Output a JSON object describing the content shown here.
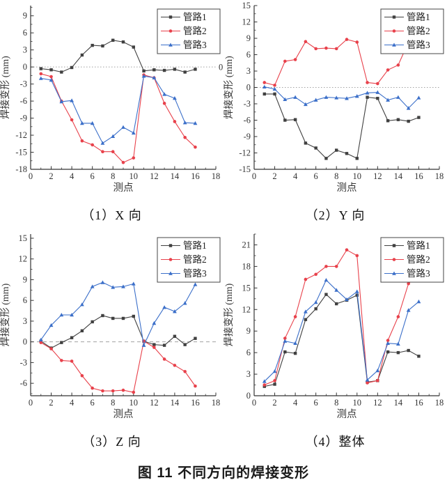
{
  "figure": {
    "caption": "图 11  不同方向的焊接变形"
  },
  "chart_data": [
    {
      "type": "line",
      "title": "（1）X 向",
      "xlabel": "测点",
      "ylabel": "焊接变形 (mm)",
      "x": [
        1,
        2,
        3,
        4,
        5,
        6,
        7,
        8,
        9,
        10,
        11,
        12,
        13,
        14,
        15,
        16
      ],
      "xlim": [
        0,
        18
      ],
      "xticks": [
        0,
        2,
        4,
        6,
        8,
        10,
        12,
        14,
        16,
        18
      ],
      "ylim": [
        -18,
        10.8
      ],
      "yticks": [
        -18,
        -15,
        -12,
        -9,
        -6,
        -3,
        0,
        3,
        6,
        9
      ],
      "zero_line": "dotted",
      "zero_line_label": "0",
      "legend_position": "top-right",
      "series": [
        {
          "name": "管路1",
          "marker": "square",
          "color": "#404040",
          "values": [
            -0.3,
            -0.5,
            -0.9,
            -0.1,
            2.1,
            3.8,
            3.7,
            4.7,
            4.4,
            3.5,
            -0.7,
            -0.5,
            -0.6,
            -0.4,
            -0.9,
            -0.4
          ]
        },
        {
          "name": "管路2",
          "marker": "circle",
          "color": "#e8414b",
          "values": [
            -1.2,
            -1.7,
            -6.0,
            -9.3,
            -13.0,
            -13.7,
            -14.9,
            -14.9,
            -16.8,
            -16.0,
            -1.4,
            -1.9,
            -6.4,
            -9.6,
            -12.4,
            -14.1
          ]
        },
        {
          "name": "管路3",
          "marker": "triangle",
          "color": "#3b6fc9",
          "values": [
            -2.0,
            -2.3,
            -6.1,
            -5.9,
            -9.9,
            -9.9,
            -13.4,
            -12.2,
            -10.6,
            -11.6,
            -1.6,
            -1.9,
            -4.8,
            -5.5,
            -9.8,
            -9.9
          ]
        }
      ]
    },
    {
      "type": "line",
      "title": "（2）Y 向",
      "xlabel": "测点",
      "ylabel": "焊接变形 (mm)",
      "x": [
        1,
        2,
        3,
        4,
        5,
        6,
        7,
        8,
        9,
        10,
        11,
        12,
        13,
        14,
        15,
        16
      ],
      "xlim": [
        0,
        18
      ],
      "xticks": [
        0,
        2,
        4,
        6,
        8,
        10,
        12,
        14,
        16,
        18
      ],
      "ylim": [
        -15,
        15
      ],
      "yticks": [
        -15,
        -12,
        -9,
        -6,
        -3,
        0,
        3,
        6,
        9,
        12,
        15
      ],
      "zero_line": "dotted",
      "zero_line_label": null,
      "legend_position": "top-right",
      "series": [
        {
          "name": "管路1",
          "marker": "square",
          "color": "#404040",
          "values": [
            -1.2,
            -1.2,
            -6.0,
            -5.9,
            -10.2,
            -11.1,
            -13.0,
            -11.5,
            -12.1,
            -13.0,
            -1.8,
            -2.0,
            -6.1,
            -5.9,
            -6.2,
            -5.5
          ]
        },
        {
          "name": "管路2",
          "marker": "circle",
          "color": "#e8414b",
          "values": [
            0.9,
            0.4,
            4.8,
            5.1,
            8.4,
            7.1,
            7.2,
            7.1,
            8.8,
            8.3,
            0.9,
            0.7,
            3.2,
            4.1,
            8.3,
            6.9
          ]
        },
        {
          "name": "管路3",
          "marker": "triangle",
          "color": "#3b6fc9",
          "values": [
            0.1,
            -0.3,
            -2.2,
            -1.8,
            -3.1,
            -2.3,
            -1.8,
            -1.9,
            -2.0,
            -1.6,
            -1.0,
            -0.9,
            -2.3,
            -1.8,
            -3.8,
            -1.9
          ]
        }
      ]
    },
    {
      "type": "line",
      "title": "（3）Z 向",
      "xlabel": "测点",
      "ylabel": "焊接变形 (mm)",
      "x": [
        1,
        2,
        3,
        4,
        5,
        6,
        7,
        8,
        9,
        10,
        11,
        12,
        13,
        14,
        15,
        16
      ],
      "xlim": [
        0,
        18
      ],
      "xticks": [
        0,
        2,
        4,
        6,
        8,
        10,
        12,
        14,
        16,
        18
      ],
      "ylim": [
        -7.8,
        15.6
      ],
      "yticks": [
        -6,
        -3,
        0,
        3,
        6,
        9,
        12,
        15
      ],
      "zero_line": "dashed",
      "zero_line_label": null,
      "legend_position": "top-right",
      "series": [
        {
          "name": "管路1",
          "marker": "square",
          "color": "#404040",
          "values": [
            0.1,
            -0.9,
            -0.1,
            0.6,
            1.6,
            2.9,
            3.8,
            3.4,
            3.4,
            3.7,
            0.1,
            -0.4,
            -0.5,
            0.8,
            -0.4,
            0.5
          ]
        },
        {
          "name": "管路2",
          "marker": "circle",
          "color": "#e8414b",
          "values": [
            -0.1,
            -1.0,
            -2.7,
            -2.8,
            -4.9,
            -6.7,
            -7.1,
            -7.1,
            -7.0,
            -7.3,
            0.1,
            -0.8,
            -2.5,
            -3.4,
            -4.3,
            -6.4
          ]
        },
        {
          "name": "管路3",
          "marker": "triangle",
          "color": "#3b6fc9",
          "values": [
            0.3,
            2.4,
            3.9,
            3.9,
            5.4,
            8.0,
            8.6,
            7.9,
            8.0,
            8.4,
            -0.5,
            2.7,
            5.0,
            4.4,
            5.6,
            8.3
          ]
        }
      ]
    },
    {
      "type": "line",
      "title": "（4）整体",
      "xlabel": "测点",
      "ylabel": "焊接变形 (mm)",
      "x": [
        1,
        2,
        3,
        4,
        5,
        6,
        7,
        8,
        9,
        10,
        11,
        12,
        13,
        14,
        15,
        16
      ],
      "xlim": [
        0,
        18
      ],
      "xticks": [
        0,
        2,
        4,
        6,
        8,
        10,
        12,
        14,
        16,
        18
      ],
      "ylim": [
        0,
        22.5
      ],
      "yticks": [
        0,
        3,
        6,
        9,
        12,
        15,
        18,
        21
      ],
      "zero_line": null,
      "zero_line_label": null,
      "legend_position": "top-right",
      "series": [
        {
          "name": "管路1",
          "marker": "square",
          "color": "#404040",
          "values": [
            1.3,
            1.6,
            6.1,
            5.9,
            10.6,
            12.1,
            14.1,
            12.8,
            13.3,
            14.0,
            1.9,
            2.1,
            6.1,
            6.0,
            6.3,
            5.5
          ]
        },
        {
          "name": "管路2",
          "marker": "circle",
          "color": "#e8414b",
          "values": [
            1.5,
            2.1,
            8.0,
            11.0,
            16.2,
            16.9,
            18.0,
            18.0,
            20.3,
            19.5,
            1.8,
            2.1,
            7.7,
            11.0,
            15.6,
            16.9
          ]
        },
        {
          "name": "管路3",
          "marker": "triangle",
          "color": "#3b6fc9",
          "values": [
            2.0,
            3.4,
            7.6,
            7.3,
            11.7,
            13.0,
            16.1,
            14.7,
            13.4,
            14.5,
            2.2,
            3.5,
            7.3,
            7.2,
            11.9,
            13.1
          ]
        }
      ]
    }
  ],
  "style": {
    "axis_color": "#333333",
    "zero_line_color": "#a0a0a0",
    "legend_border_color": "#444444",
    "legend_labels": [
      "管路1",
      "管路2",
      "管路3"
    ]
  }
}
